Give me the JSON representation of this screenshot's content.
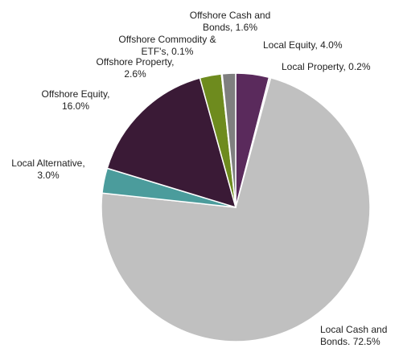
{
  "chart_data": {
    "type": "pie",
    "labels": [
      [
        "Local Equity, 4.0%"
      ],
      [
        "Local Property, 0.2%"
      ],
      [
        "Local Cash and",
        "Bonds. 72.5%"
      ],
      [
        "Local Alternative,",
        "3.0%"
      ],
      [
        "Offshore Equity,",
        "16.0%"
      ],
      [
        "Offshore Property,",
        "2.6%"
      ],
      [
        "Offshore Commodity &",
        "ETF's, 0.1%"
      ],
      [
        "Offshore Cash and",
        "Bonds, 1.6%"
      ]
    ],
    "values": [
      4.0,
      0.2,
      72.5,
      3.0,
      16.0,
      2.6,
      0.1,
      1.6
    ],
    "colors": [
      "#5a2a5c",
      "#d9d9d9",
      "#c0c0c0",
      "#4b9c9c",
      "#3a1a36",
      "#6e8b1e",
      "#b0b0b0",
      "#7f7f7f"
    ]
  }
}
